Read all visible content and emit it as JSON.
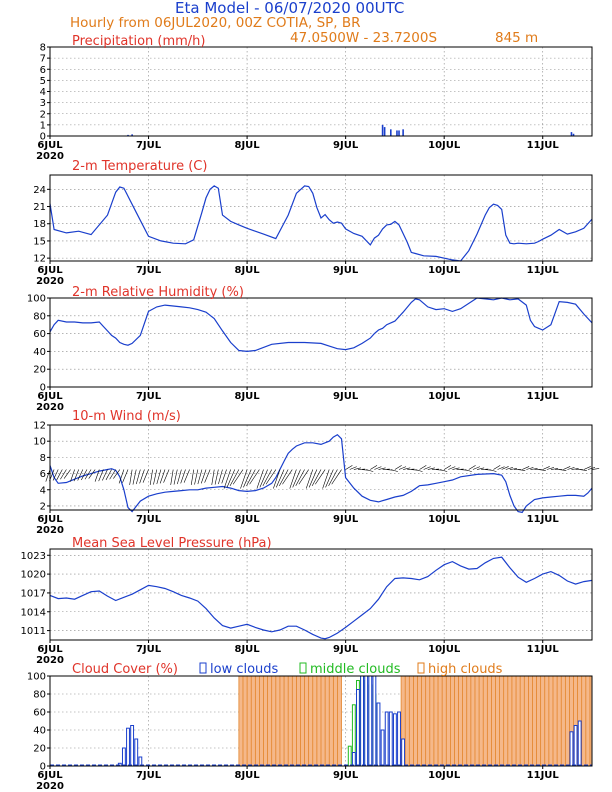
{
  "header": {
    "title": "Eta Model - 06/07/2020 00UTC",
    "subtitle": "Hourly from 06JUL2020, 00Z   COTIA, SP, BR",
    "coords": "47.0500W - 23.7200S",
    "elevation": "845  m"
  },
  "colors": {
    "line": "#1a3fcc",
    "low": "#1a3fcc",
    "middle": "#22bb22",
    "high": "#e07b1a",
    "highFill": "#f5b88a",
    "title": "#e0342a"
  },
  "xaxis": {
    "ticks": [
      {
        "hour": 0,
        "label": "6JUL",
        "year": "2020"
      },
      {
        "hour": 24,
        "label": "7JUL"
      },
      {
        "hour": 48,
        "label": "8JUL"
      },
      {
        "hour": 72,
        "label": "9JUL"
      },
      {
        "hour": 96,
        "label": "10JUL"
      },
      {
        "hour": 120,
        "label": "11JUL"
      }
    ],
    "max_hour": 132
  },
  "chart_data": [
    {
      "id": "precip",
      "type": "bar",
      "title": "Precipitation (mm/h)",
      "ylim": [
        0,
        8
      ],
      "yticks": [
        0,
        1,
        2,
        3,
        4,
        5,
        6,
        7,
        8
      ],
      "x": [
        19,
        20,
        81,
        81.5,
        83,
        84.5,
        85,
        86,
        127,
        127.5
      ],
      "values": [
        0.1,
        0.15,
        1.0,
        0.8,
        0.6,
        0.5,
        0.5,
        0.6,
        0.35,
        0.2
      ]
    },
    {
      "id": "temp",
      "type": "line",
      "title": "2-m Temperature (C)",
      "ylim": [
        11.5,
        26.5
      ],
      "yticks": [
        12,
        15,
        18,
        21,
        24
      ],
      "x": [
        0,
        1,
        4,
        7,
        10,
        14,
        16,
        17,
        18,
        21,
        24,
        27,
        30,
        33,
        35,
        37,
        38,
        39,
        40,
        41,
        42,
        44,
        46,
        48,
        52,
        55,
        58,
        60,
        62,
        63,
        64,
        65,
        66,
        67,
        68,
        69,
        70,
        71,
        72,
        74,
        76,
        78,
        79,
        80,
        81,
        82,
        83,
        84,
        85,
        87,
        88,
        89,
        91,
        94,
        98,
        100,
        102,
        104,
        106,
        107,
        108,
        109,
        110,
        111,
        112,
        113,
        114,
        116,
        118,
        119,
        120,
        122,
        124,
        126,
        128,
        130,
        132
      ],
      "values": [
        21.5,
        17.0,
        16.4,
        16.7,
        16.1,
        19.5,
        23.5,
        24.4,
        24.2,
        20.0,
        15.8,
        15.0,
        14.6,
        14.5,
        15.2,
        20.0,
        22.5,
        24.0,
        24.6,
        24.2,
        19.5,
        18.4,
        17.8,
        17.2,
        16.2,
        15.4,
        19.5,
        23.3,
        24.6,
        24.5,
        23.3,
        20.8,
        19.0,
        19.6,
        18.7,
        18.1,
        18.3,
        18.1,
        17.1,
        16.3,
        15.8,
        14.3,
        15.5,
        16.0,
        17.1,
        17.8,
        17.9,
        18.4,
        17.8,
        14.8,
        13.0,
        12.8,
        12.4,
        12.3,
        11.7,
        11.5,
        13.3,
        16.2,
        19.5,
        20.8,
        21.4,
        21.2,
        20.5,
        16.0,
        14.6,
        14.5,
        14.6,
        14.5,
        14.6,
        14.9,
        15.3,
        16.0,
        17.0,
        16.2,
        16.6,
        17.2,
        18.8
      ]
    },
    {
      "id": "rh",
      "type": "line",
      "title": "2-m Relative Humidity (%)",
      "ylim": [
        0,
        100
      ],
      "yticks": [
        0,
        20,
        40,
        60,
        80,
        100
      ],
      "x": [
        0,
        1,
        2,
        4,
        6,
        8,
        10,
        12,
        13,
        14,
        15,
        16,
        17,
        18,
        19,
        20,
        22,
        24,
        26,
        28,
        30,
        32,
        34,
        36,
        38,
        40,
        42,
        44,
        46,
        48,
        50,
        54,
        58,
        62,
        66,
        68,
        70,
        72,
        74,
        76,
        78,
        79,
        80,
        81,
        82,
        84,
        86,
        88,
        89,
        90,
        92,
        94,
        96,
        98,
        100,
        104,
        106,
        108,
        110,
        112,
        114,
        116,
        117,
        118,
        119,
        120,
        122,
        124,
        126,
        128,
        130,
        132
      ],
      "values": [
        62,
        70,
        75,
        73,
        73,
        72,
        72,
        73,
        68,
        63,
        58,
        55,
        50,
        48,
        47,
        49,
        58,
        85,
        90,
        92,
        91,
        90,
        89,
        87,
        84,
        77,
        63,
        50,
        41,
        40,
        41,
        48,
        50,
        50,
        49,
        46,
        43,
        42,
        44,
        49,
        55,
        60,
        64,
        66,
        70,
        74,
        84,
        95,
        99,
        98,
        90,
        87,
        88,
        85,
        88,
        100,
        99,
        98,
        100,
        98,
        99,
        92,
        75,
        68,
        66,
        64,
        70,
        96,
        95,
        93,
        82,
        72
      ]
    },
    {
      "id": "wind",
      "type": "line",
      "title": "10-m Wind (m/s)",
      "ylim": [
        1.5,
        12
      ],
      "yticks": [
        2,
        4,
        6,
        8,
        10,
        12
      ],
      "x": [
        0,
        1,
        2,
        4,
        6,
        8,
        10,
        12,
        14,
        15,
        16,
        17,
        18,
        19,
        20,
        22,
        24,
        26,
        28,
        30,
        32,
        34,
        36,
        38,
        40,
        42,
        44,
        46,
        48,
        50,
        52,
        54,
        55,
        56,
        57,
        58,
        59,
        60,
        62,
        64,
        66,
        68,
        69,
        70,
        71,
        72,
        74,
        76,
        78,
        80,
        82,
        84,
        86,
        88,
        90,
        92,
        94,
        96,
        98,
        100,
        104,
        108,
        110,
        111,
        112,
        113,
        114,
        115,
        116,
        118,
        120,
        122,
        124,
        126,
        128,
        130,
        131,
        132
      ],
      "values": [
        7.0,
        5.5,
        4.8,
        4.9,
        5.3,
        5.7,
        6.0,
        6.3,
        6.5,
        6.6,
        6.4,
        5.6,
        4.0,
        1.8,
        1.3,
        2.6,
        3.2,
        3.5,
        3.7,
        3.8,
        3.9,
        4.0,
        4.0,
        4.2,
        4.3,
        4.4,
        4.2,
        3.9,
        3.8,
        3.9,
        4.2,
        4.8,
        5.5,
        6.5,
        7.5,
        8.5,
        9.0,
        9.4,
        9.8,
        9.8,
        9.6,
        10.0,
        10.5,
        10.8,
        10.3,
        5.5,
        4.2,
        3.2,
        2.7,
        2.5,
        2.8,
        3.1,
        3.3,
        3.8,
        4.5,
        4.6,
        4.8,
        5.0,
        5.2,
        5.6,
        5.9,
        6.0,
        5.8,
        5.0,
        3.3,
        2.0,
        1.3,
        1.2,
        2.0,
        2.8,
        3.0,
        3.1,
        3.2,
        3.3,
        3.3,
        3.2,
        3.6,
        4.2
      ]
    },
    {
      "id": "mslp",
      "type": "line",
      "title": "Mean Sea Level Pressure (hPa)",
      "ylim": [
        1009.5,
        1024
      ],
      "yticks": [
        1011,
        1014,
        1017,
        1020,
        1023
      ],
      "x": [
        0,
        2,
        4,
        6,
        8,
        10,
        12,
        14,
        16,
        18,
        20,
        22,
        24,
        26,
        28,
        30,
        32,
        34,
        36,
        38,
        40,
        42,
        44,
        46,
        48,
        50,
        52,
        54,
        56,
        58,
        60,
        62,
        64,
        66,
        67,
        68,
        70,
        72,
        74,
        76,
        78,
        80,
        82,
        84,
        86,
        88,
        90,
        92,
        94,
        96,
        98,
        100,
        102,
        104,
        106,
        108,
        110,
        112,
        114,
        116,
        118,
        120,
        122,
        124,
        126,
        128,
        130,
        132
      ],
      "values": [
        1016.6,
        1016.1,
        1016.2,
        1016.0,
        1016.6,
        1017.2,
        1017.3,
        1016.5,
        1015.8,
        1016.3,
        1016.8,
        1017.5,
        1018.2,
        1018.0,
        1017.7,
        1017.2,
        1016.6,
        1016.2,
        1015.7,
        1014.5,
        1013.0,
        1011.8,
        1011.4,
        1011.7,
        1012.0,
        1011.5,
        1011.1,
        1010.8,
        1011.1,
        1011.7,
        1011.7,
        1011.1,
        1010.4,
        1009.8,
        1009.7,
        1009.9,
        1010.6,
        1011.5,
        1012.5,
        1013.5,
        1014.5,
        1016.0,
        1018.0,
        1019.3,
        1019.4,
        1019.3,
        1019.1,
        1019.6,
        1020.6,
        1021.5,
        1022.0,
        1021.3,
        1020.8,
        1020.9,
        1021.8,
        1022.5,
        1022.7,
        1021.0,
        1019.5,
        1018.7,
        1019.3,
        1020.0,
        1020.4,
        1019.8,
        1018.9,
        1018.4,
        1018.8,
        1019.0
      ]
    },
    {
      "id": "cloud",
      "type": "bar",
      "title": "Cloud Cover (%)",
      "ylim": [
        0,
        100
      ],
      "yticks": [
        0,
        20,
        40,
        60,
        80,
        100
      ],
      "legend": [
        "low clouds",
        "middle clouds",
        "high clouds"
      ],
      "low": {
        "x": [
          17,
          18,
          19,
          20,
          21,
          22,
          74,
          75,
          76,
          77,
          78,
          79,
          80,
          81,
          82,
          83,
          84,
          85,
          86,
          127,
          128,
          129
        ],
        "values": [
          3,
          20,
          42,
          45,
          30,
          10,
          15,
          85,
          100,
          100,
          100,
          100,
          70,
          40,
          60,
          60,
          58,
          60,
          30,
          38,
          45,
          50
        ]
      },
      "middle": {
        "x": [
          73,
          74,
          75,
          76,
          77,
          78,
          79
        ],
        "values": [
          22,
          68,
          95,
          100,
          95,
          90,
          80
        ]
      },
      "high": {
        "ranges": [
          [
            46,
            71
          ],
          [
            85.5,
            132
          ]
        ],
        "values": [
          100,
          100
        ]
      }
    }
  ]
}
